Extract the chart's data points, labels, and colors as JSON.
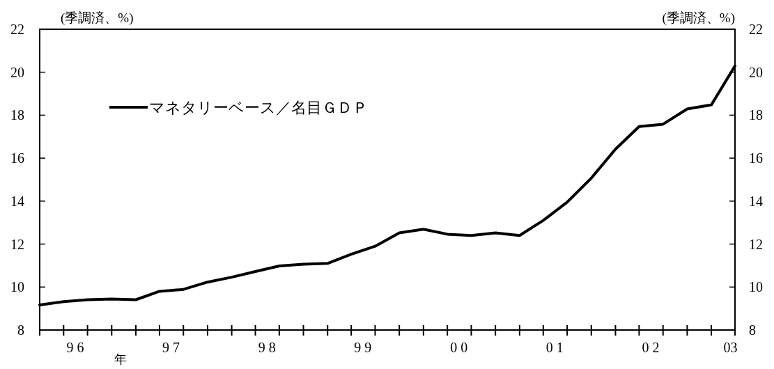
{
  "chart_data": {
    "type": "line",
    "ylabel": "(季調済、%)",
    "y2label": "(季調済、%)",
    "x": [
      "1996-01",
      "1996-04",
      "1996-07",
      "1996-10",
      "1997-01",
      "1997-04",
      "1997-07",
      "1997-10",
      "1998-01",
      "1998-04",
      "1998-07",
      "1998-10",
      "1999-01",
      "1999-04",
      "1999-07",
      "1999-10",
      "2000-01",
      "2000-04",
      "2000-07",
      "2000-10",
      "2001-01",
      "2001-04",
      "2001-07",
      "2001-10",
      "2002-01",
      "2002-04",
      "2002-07",
      "2002-10",
      "2003-01",
      "2003-04"
    ],
    "series": [
      {
        "name": "マネタリーベース／名目ＧＤＰ",
        "color": "#000000",
        "values": [
          9.17,
          9.32,
          9.41,
          9.44,
          9.41,
          9.8,
          9.89,
          10.23,
          10.46,
          10.72,
          10.98,
          11.06,
          11.1,
          11.53,
          11.9,
          12.52,
          12.69,
          12.46,
          12.4,
          12.52,
          12.4,
          13.1,
          13.95,
          15.07,
          16.42,
          17.47,
          17.58,
          18.29,
          18.48,
          20.29
        ]
      }
    ],
    "xlim": [
      "1996-01",
      "2003-04"
    ],
    "xticks": [
      {
        "value": "1996-01",
        "label": null
      },
      {
        "value": "1996-04",
        "label": null
      },
      {
        "value": "1996-07",
        "label": null
      },
      {
        "value": "1996-10",
        "label": null
      },
      {
        "value": "1997-01",
        "label": null
      },
      {
        "value": "1997-04",
        "label": null
      },
      {
        "value": "1997-07",
        "label": null
      },
      {
        "value": "1997-10",
        "label": null
      },
      {
        "value": "1998-01",
        "label": null
      },
      {
        "value": "1998-04",
        "label": null
      },
      {
        "value": "1998-07",
        "label": null
      },
      {
        "value": "1998-10",
        "label": null
      },
      {
        "value": "1999-01",
        "label": null
      },
      {
        "value": "1999-04",
        "label": null
      },
      {
        "value": "1999-07",
        "label": null
      },
      {
        "value": "1999-10",
        "label": null
      },
      {
        "value": "2000-01",
        "label": null
      },
      {
        "value": "2000-04",
        "label": null
      },
      {
        "value": "2000-07",
        "label": null
      },
      {
        "value": "2000-10",
        "label": null
      },
      {
        "value": "2001-01",
        "label": null
      },
      {
        "value": "2001-04",
        "label": null
      },
      {
        "value": "2001-07",
        "label": null
      },
      {
        "value": "2001-10",
        "label": null
      },
      {
        "value": "2002-01",
        "label": null
      },
      {
        "value": "2002-04",
        "label": null
      },
      {
        "value": "2002-07",
        "label": null
      },
      {
        "value": "2002-10",
        "label": null
      },
      {
        "value": "2003-01",
        "label": null
      },
      {
        "value": "2003-04",
        "label": null
      },
      {
        "value": "1996-05-15",
        "label": "9 6"
      },
      {
        "value": "1997-05-15",
        "label": "9 7"
      },
      {
        "value": "1998-05-15",
        "label": "9 8"
      },
      {
        "value": "1999-05-15",
        "label": "9 9"
      },
      {
        "value": "2000-05-15",
        "label": "0 0"
      },
      {
        "value": "2001-05-15",
        "label": "0 1"
      },
      {
        "value": "2002-05-15",
        "label": "0 2"
      },
      {
        "value": "2003-03-15",
        "label": "03"
      }
    ],
    "ylim": [
      8,
      22
    ],
    "yticks": [
      8,
      10,
      12,
      14,
      16,
      18,
      20,
      22
    ],
    "y2lim": [
      8,
      22
    ],
    "y2ticks": [
      8,
      10,
      12,
      14,
      16,
      18,
      20,
      22
    ],
    "annotations": [
      "年"
    ],
    "legend": "top left",
    "grid": false
  }
}
